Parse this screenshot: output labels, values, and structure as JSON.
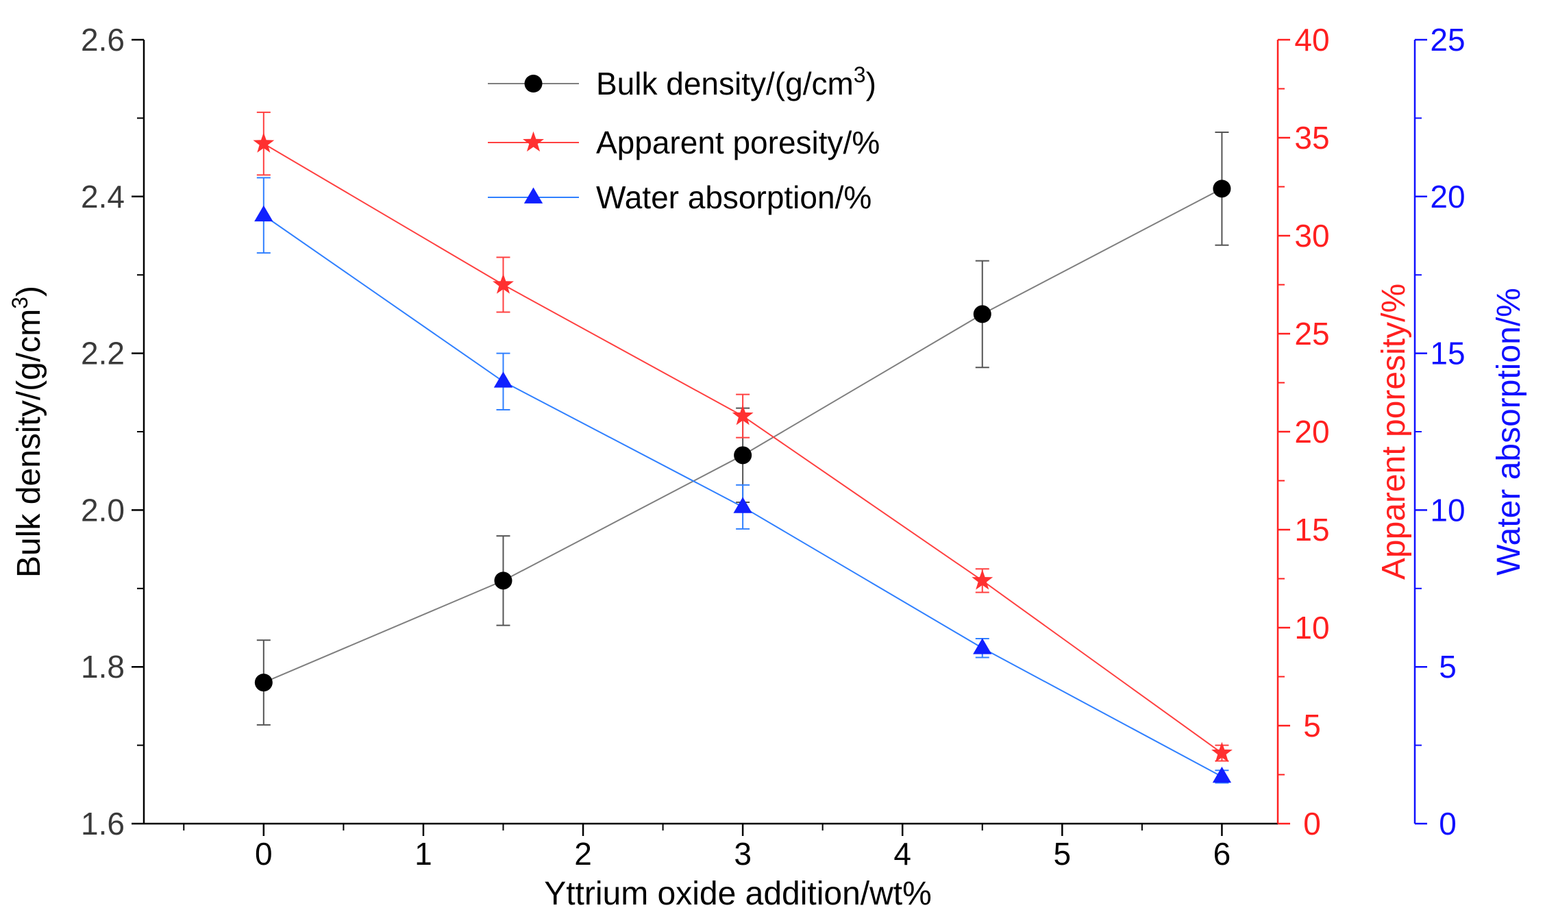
{
  "chart_data": {
    "type": "line",
    "title": "",
    "xlabel": "Yttrium oxide addition/wt%",
    "x": [
      0,
      1.5,
      3,
      4.5,
      6
    ],
    "xlim": [
      -0.75,
      6.35
    ],
    "xticks": [
      0,
      1,
      2,
      3,
      4,
      5,
      6
    ],
    "axes": {
      "left": {
        "label": "Bulk density/(g/cm",
        "label_sup": "3",
        "label_close": ")",
        "ylim": [
          1.6,
          2.6
        ],
        "ticks": [
          "1.6",
          "1.8",
          "2.0",
          "2.2",
          "2.4",
          "2.6"
        ],
        "color": "#000000"
      },
      "right1": {
        "label": "Apparent poresity/%",
        "ylim": [
          0,
          40
        ],
        "ticks": [
          "0",
          "5",
          "10",
          "15",
          "20",
          "25",
          "30",
          "35",
          "40"
        ],
        "color": "#ff2020"
      },
      "right2": {
        "label": "Water absorption/%",
        "ylim": [
          0,
          25
        ],
        "ticks": [
          "0",
          "5",
          "10",
          "15",
          "20",
          "25"
        ],
        "color": "#1010ff"
      }
    },
    "series": [
      {
        "name": "Bulk density/(g/cm",
        "name_sup": "3",
        "name_close": ")",
        "axis": "left",
        "marker": "circle",
        "color": "#000000",
        "line_color": "#7f7f7f",
        "values": [
          1.78,
          1.91,
          2.07,
          2.25,
          2.41
        ],
        "errors": [
          0.054,
          0.057,
          0.06,
          0.068,
          0.072
        ]
      },
      {
        "name": "Apparent poresity/%",
        "axis": "right1",
        "marker": "star",
        "color": "#ff3030",
        "line_color": "#ff4040",
        "values": [
          34.7,
          27.5,
          20.8,
          12.4,
          3.6
        ],
        "errors": [
          1.6,
          1.4,
          1.1,
          0.6,
          0.4
        ]
      },
      {
        "name": "Water absorption/%",
        "axis": "right2",
        "marker": "triangle",
        "color": "#1020ff",
        "line_color": "#3080ff",
        "values": [
          19.4,
          14.1,
          10.1,
          5.6,
          1.5
        ],
        "errors": [
          1.2,
          0.9,
          0.7,
          0.3,
          0.2
        ]
      }
    ],
    "legend": {
      "position": "top-center"
    }
  }
}
